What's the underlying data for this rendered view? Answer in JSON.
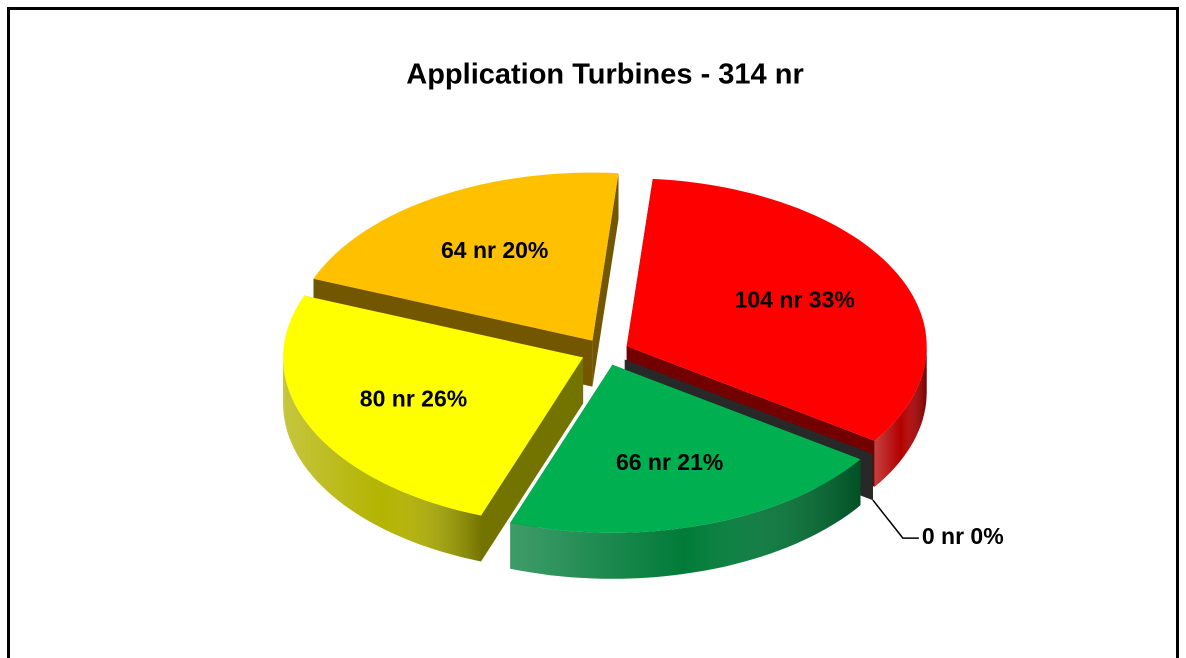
{
  "chart_data": {
    "type": "pie",
    "title": "Application Turbines - 314 nr",
    "values": [
      104,
      0,
      66,
      80,
      64
    ],
    "value_labels": [
      "104 nr 33%",
      "0 nr 0%",
      "66 nr 21%",
      "80 nr 26%",
      "64 nr 20%"
    ],
    "colors": [
      "#ff0000",
      "#595959",
      "#00b050",
      "#ffff00",
      "#ffc000"
    ]
  }
}
